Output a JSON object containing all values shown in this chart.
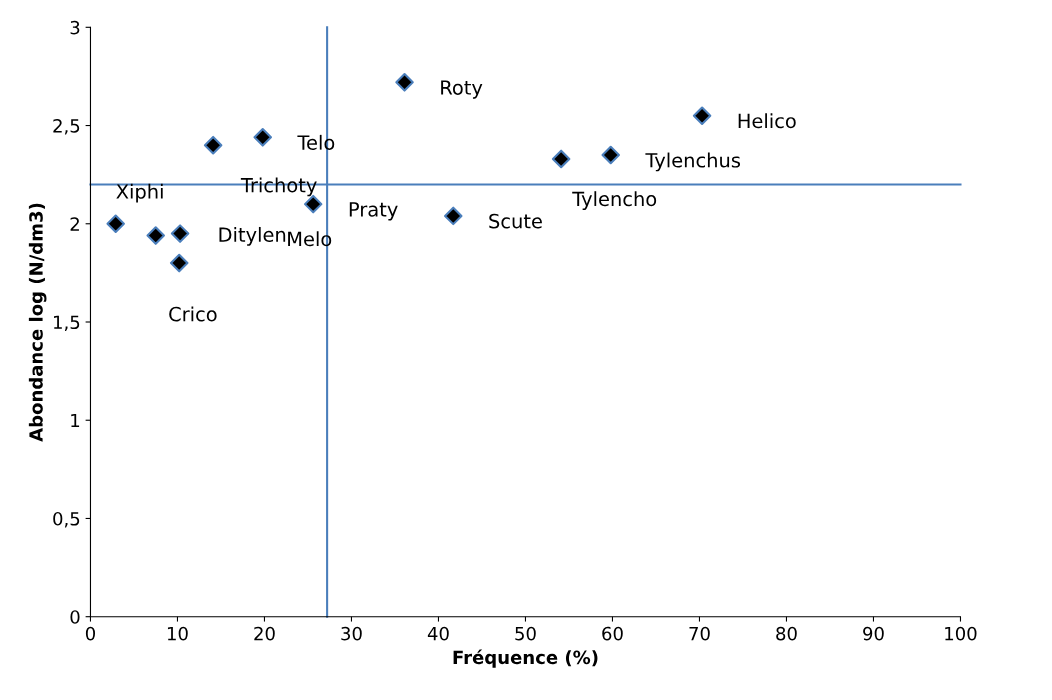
{
  "chart_data": {
    "type": "scatter",
    "xlabel": "Fréquence (%)",
    "ylabel": "Abondance log (N/dm3)",
    "x": [
      2.9,
      7.5,
      10.3,
      10.2,
      14.1,
      19.8,
      25.6,
      36.1,
      41.7,
      54.1,
      59.8,
      70.3
    ],
    "series": [
      {
        "color": "#000000",
        "values": [
          2.0,
          1.94,
          1.95,
          1.8,
          2.4,
          2.44,
          2.1,
          2.72,
          2.04,
          2.33,
          2.35,
          2.55
        ]
      }
    ],
    "marker": "diamond",
    "xlim": [
      0,
      100
    ],
    "xticks": [
      0,
      10,
      20,
      30,
      40,
      50,
      60,
      70,
      80,
      90,
      100
    ],
    "ylim": [
      0,
      3
    ],
    "yticks": [
      0,
      {
        "value": 0.5,
        "label": "0,5"
      },
      1,
      {
        "value": 1.5,
        "label": "1,5"
      },
      2,
      {
        "value": 2.5,
        "label": "2,5"
      },
      3
    ],
    "grid": false,
    "ref_lines": [
      {
        "axis": "x",
        "value": 27.2,
        "color": "#4a7ebb"
      },
      {
        "axis": "y",
        "value": 2.2,
        "color": "#4a7ebb"
      }
    ],
    "annotations": [
      {
        "text": "Xiphi",
        "x": 2.9,
        "y": 2.0
      },
      {
        "text": "Ditylen",
        "x": 10.3,
        "y": 1.95
      },
      {
        "text": "Crico",
        "x": 10.2,
        "y": 1.8
      },
      {
        "text": "Trichoty",
        "x": 14.1,
        "y": 2.4
      },
      {
        "text": "Telo",
        "x": 19.8,
        "y": 2.44
      },
      {
        "text": "Praty",
        "x": 25.6,
        "y": 2.1
      },
      "Melo",
      {
        "text": "Roty",
        "x": 36.1,
        "y": 2.72
      },
      {
        "text": "Scute",
        "x": 41.7,
        "y": 2.04
      },
      {
        "text": "Tylencho",
        "x": 54.1,
        "y": 2.33
      },
      {
        "text": "Tylenchus",
        "x": 59.8,
        "y": 2.35
      },
      {
        "text": "Helico",
        "x": 70.3,
        "y": 2.55
      }
    ]
  }
}
